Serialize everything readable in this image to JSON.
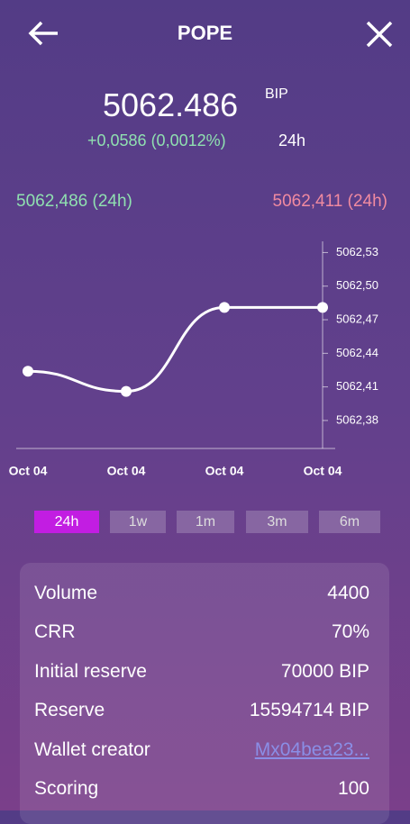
{
  "header": {
    "title": "POPE"
  },
  "price": {
    "value": "5062.486",
    "unit": "BIP"
  },
  "change": {
    "text": "+0,0586 (0,0012%)",
    "period": "24h"
  },
  "chart_data": {
    "type": "line",
    "annotations": [
      "5062,486 (24h)",
      "5062,411 (24h)"
    ],
    "categories": [
      "Oct 04",
      "Oct 04",
      "Oct 04",
      "Oct 04"
    ],
    "values": [
      5062.424,
      5062.406,
      5062.481,
      5062.481
    ],
    "color": "#ffffff",
    "ylim": [
      5062.355,
      5062.54
    ],
    "yticks": [
      {
        "value": 5062.53,
        "label": "5062,53"
      },
      {
        "value": 5062.5,
        "label": "5062,50"
      },
      {
        "value": 5062.47,
        "label": "5062,47"
      },
      {
        "value": 5062.44,
        "label": "5062,44"
      },
      {
        "value": 5062.41,
        "label": "5062,41"
      },
      {
        "value": 5062.38,
        "label": "5062,38"
      }
    ]
  },
  "tabs": [
    "24h",
    "1w",
    "1m",
    "3m",
    "6m"
  ],
  "stats": [
    [
      "Volume",
      "4400"
    ],
    [
      "CRR",
      "70%"
    ],
    [
      "Initial reserve",
      "70000 BIP"
    ],
    [
      "Reserve",
      "15594714 BIP"
    ],
    [
      "Wallet creator",
      "Mx04bea23..."
    ],
    [
      "Scoring",
      "100"
    ]
  ]
}
